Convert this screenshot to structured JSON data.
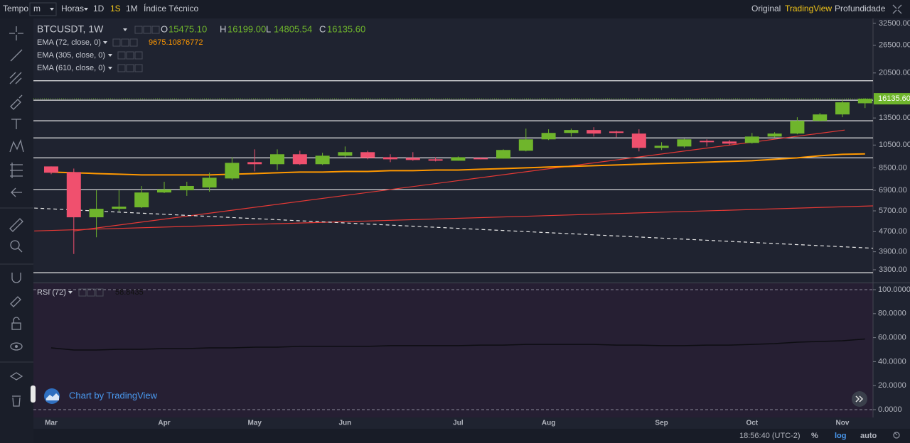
{
  "toolbar": {
    "left": [
      "Tempo",
      "m",
      "Horas",
      "1D",
      "1S",
      "1M",
      "Índice Técnico"
    ],
    "active_index": 4,
    "right": [
      "Original",
      "TradingView",
      "Profundidade"
    ],
    "right_active_index": 1
  },
  "chart_data": {
    "type": "candlestick",
    "symbol": "BTCUSDT, 1W",
    "ohlc": [
      {
        "key": "O",
        "label": "15475.10"
      },
      {
        "key": "H",
        "label": "16199.00"
      },
      {
        "key": "L",
        "label": "14805.54"
      },
      {
        "key": "C",
        "label": "16135.60"
      }
    ],
    "categories": [
      "Mar",
      null,
      null,
      null,
      null,
      "Apr",
      null,
      null,
      null,
      "May",
      null,
      null,
      null,
      "Jun",
      null,
      null,
      null,
      null,
      "Jul",
      null,
      null,
      null,
      "Aug",
      null,
      null,
      null,
      null,
      "Sep",
      null,
      null,
      null,
      "Oct",
      null,
      null,
      null,
      "Nov",
      null
    ],
    "candles": [
      {
        "open": 8610,
        "high": 8610,
        "low": 8010,
        "close": 8120
      },
      {
        "open": 8170,
        "high": 8440,
        "low": 3820,
        "close": 5370
      },
      {
        "open": 5370,
        "high": 6900,
        "low": 4460,
        "close": 5810
      },
      {
        "open": 5810,
        "high": 6900,
        "low": 5660,
        "close": 5930
      },
      {
        "open": 5890,
        "high": 7180,
        "low": 5850,
        "close": 6760
      },
      {
        "open": 6760,
        "high": 7470,
        "low": 6720,
        "close": 6950
      },
      {
        "open": 6900,
        "high": 7470,
        "low": 6550,
        "close": 7180
      },
      {
        "open": 7080,
        "high": 8120,
        "low": 6810,
        "close": 7750
      },
      {
        "open": 7700,
        "high": 9380,
        "low": 7600,
        "close": 8900
      },
      {
        "open": 8960,
        "high": 10090,
        "low": 8220,
        "close": 8790
      },
      {
        "open": 8790,
        "high": 10090,
        "low": 8330,
        "close": 9640
      },
      {
        "open": 9640,
        "high": 9960,
        "low": 8730,
        "close": 8790
      },
      {
        "open": 8790,
        "high": 9770,
        "low": 8730,
        "close": 9510
      },
      {
        "open": 9510,
        "high": 10360,
        "low": 9380,
        "close": 9830
      },
      {
        "open": 9830,
        "high": 9960,
        "low": 9200,
        "close": 9320
      },
      {
        "open": 9380,
        "high": 9640,
        "low": 8960,
        "close": 9200
      },
      {
        "open": 9320,
        "high": 9830,
        "low": 9080,
        "close": 9140
      },
      {
        "open": 9200,
        "high": 9380,
        "low": 9020,
        "close": 9080
      },
      {
        "open": 9080,
        "high": 9450,
        "low": 9080,
        "close": 9380
      },
      {
        "open": 9320,
        "high": 9380,
        "low": 9200,
        "close": 9200
      },
      {
        "open": 9260,
        "high": 10090,
        "low": 9260,
        "close": 10030
      },
      {
        "open": 9960,
        "high": 12230,
        "low": 9900,
        "close": 11070
      },
      {
        "open": 11070,
        "high": 12150,
        "low": 11000,
        "close": 11750
      },
      {
        "open": 11750,
        "high": 12230,
        "low": 11360,
        "close": 12070
      },
      {
        "open": 12070,
        "high": 12390,
        "low": 11360,
        "close": 11680
      },
      {
        "open": 11910,
        "high": 11990,
        "low": 11290,
        "close": 11750
      },
      {
        "open": 11680,
        "high": 12150,
        "low": 9900,
        "close": 10230
      },
      {
        "open": 10230,
        "high": 10780,
        "low": 10030,
        "close": 10430
      },
      {
        "open": 10360,
        "high": 11140,
        "low": 10230,
        "close": 11070
      },
      {
        "open": 10920,
        "high": 11070,
        "low": 10360,
        "close": 10780
      },
      {
        "open": 10850,
        "high": 11000,
        "low": 10500,
        "close": 10640
      },
      {
        "open": 10710,
        "high": 11750,
        "low": 10640,
        "close": 11360
      },
      {
        "open": 11360,
        "high": 11830,
        "low": 11290,
        "close": 11680
      },
      {
        "open": 11680,
        "high": 13590,
        "low": 11600,
        "close": 13150
      },
      {
        "open": 13150,
        "high": 14140,
        "low": 13060,
        "close": 13950
      },
      {
        "open": 13950,
        "high": 16030,
        "low": 13590,
        "close": 15610
      },
      {
        "open": 15475.1,
        "high": 16199.0,
        "low": 14805.54,
        "close": 16135.6
      }
    ],
    "up_color": "#6fb52c",
    "down_color": "#f0506e",
    "log_scale": true,
    "ylim": [
      2930,
      34000
    ],
    "yticks": [
      {
        "value": 32500,
        "label": "32500.00"
      },
      {
        "value": 26500,
        "label": "26500.00"
      },
      {
        "value": 20500,
        "label": "20500.00"
      },
      {
        "value": 13500,
        "label": "13500.00"
      },
      {
        "value": 10500,
        "label": "10500.00"
      },
      {
        "value": 8500,
        "label": "8500.00"
      },
      {
        "value": 6900,
        "label": "6900.00"
      },
      {
        "value": 5700,
        "label": "5700.00"
      },
      {
        "value": 4700,
        "label": "4700.00"
      },
      {
        "value": 3900,
        "label": "3900.00"
      },
      {
        "value": 3300,
        "label": "3300.00"
      }
    ],
    "ema": [
      {
        "name": "EMA (72, close, 0)",
        "color": "#ff9800",
        "values": [
          8170,
          8120,
          8060,
          8010,
          7960,
          7960,
          7960,
          7960,
          8010,
          8060,
          8120,
          8170,
          8170,
          8220,
          8220,
          8280,
          8280,
          8330,
          8330,
          8390,
          8440,
          8500,
          8560,
          8610,
          8670,
          8730,
          8790,
          8850,
          8900,
          8960,
          9020,
          9080,
          9200,
          9320,
          9510,
          9630,
          9675.10876772
        ]
      },
      {
        "name": "EMA (305, close, 0)"
      },
      {
        "name": "EMA (610, close, 0)"
      }
    ],
    "levels": [
      19070,
      15920,
      13150,
      11220,
      9320,
      6950,
      3210
    ],
    "level_color": "#e6e6e6",
    "trend_lines": [
      {
        "color": "#e53935",
        "from": [
          -0.75,
          4730
        ],
        "to": [
          36.35,
          5970
        ]
      },
      {
        "color": "#e53935",
        "from": [
          1,
          4730
        ],
        "to": [
          35.1,
          12070
        ]
      },
      {
        "color": "#e6e6e6",
        "dashed": true,
        "from": [
          -0.75,
          5850
        ],
        "to": [
          36.35,
          4030
        ]
      }
    ],
    "rsi": {
      "name": "RSI (72)",
      "color": "#0d0d12",
      "ylim": [
        0,
        100
      ],
      "values": [
        51.5,
        49.7,
        49.7,
        50.3,
        50.3,
        50.9,
        50.9,
        51.5,
        51.5,
        52.1,
        52.1,
        52.7,
        52.7,
        52.7,
        52.7,
        53.3,
        53.3,
        53.3,
        53.3,
        53.8,
        53.8,
        54.4,
        54.4,
        54.4,
        54.4,
        53.8,
        53.8,
        53.3,
        53.3,
        53.8,
        53.8,
        54.4,
        55.0,
        56.2,
        56.8,
        57.4,
        58.8435
      ],
      "yticks": [
        {
          "value": 100,
          "label": "100.0000"
        },
        {
          "value": 80,
          "label": "80.0000"
        },
        {
          "value": 60,
          "label": "60.0000"
        },
        {
          "value": 40,
          "label": "40.0000"
        },
        {
          "value": 20,
          "label": "20.0000"
        },
        {
          "value": 0,
          "label": "0.0000"
        }
      ]
    }
  },
  "watermark": "Chart by TradingView",
  "footer": {
    "time": "18:56:40 (UTC-2)",
    "options": [
      "%",
      "log",
      "auto"
    ],
    "active_index": 1
  }
}
